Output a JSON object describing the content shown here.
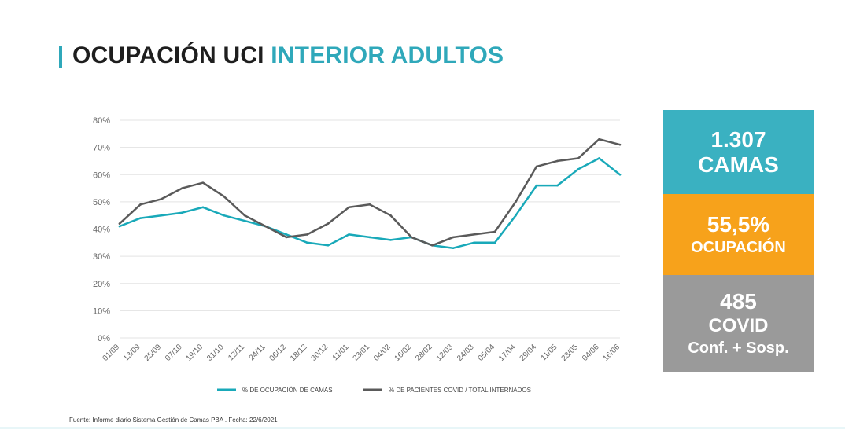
{
  "title": {
    "part1": "OCUPACIÓN UCI",
    "part2": "INTERIOR ADULTOS"
  },
  "colors": {
    "accent": "#2fa8ba",
    "series_beds": "#19a9b9",
    "series_covid": "#5a5a5a",
    "orange": "#f7a21b",
    "gray": "#9a9a9a"
  },
  "kpis": [
    {
      "lines": [
        "1.307",
        "CAMAS"
      ],
      "color": "#3ab1c1"
    },
    {
      "lines": [
        "55,5%",
        "OCUPACIÓN"
      ],
      "color": "#f7a21b"
    },
    {
      "lines": [
        "485",
        "COVID",
        "Conf. + Sosp."
      ],
      "color": "#9a9a9a"
    }
  ],
  "source": "Fuente: Informe diario Sistema Gestión de Camas PBA . Fecha: 22/6/2021",
  "chart_data": {
    "type": "line",
    "title": "",
    "xlabel": "",
    "ylabel": "",
    "ylim": [
      0,
      80
    ],
    "yticks": [
      "0%",
      "10%",
      "20%",
      "30%",
      "40%",
      "50%",
      "60%",
      "70%",
      "80%"
    ],
    "grid": true,
    "legend_position": "bottom",
    "x": [
      "01/09",
      "13/09",
      "25/09",
      "07/10",
      "19/10",
      "31/10",
      "12/11",
      "24/11",
      "06/12",
      "18/12",
      "30/12",
      "11/01",
      "23/01",
      "04/02",
      "16/02",
      "28/02",
      "12/03",
      "24/03",
      "05/04",
      "17/04",
      "29/04",
      "11/05",
      "23/05",
      "04/06",
      "16/06"
    ],
    "series": [
      {
        "name": "% DE OCUPACIÓN DE CAMAS",
        "color": "#19a9b9",
        "values": [
          41,
          44,
          45,
          46,
          48,
          45,
          43,
          41,
          38,
          35,
          34,
          38,
          37,
          36,
          37,
          34,
          33,
          35,
          35,
          45,
          56,
          56,
          62,
          66,
          60
        ]
      },
      {
        "name": "% DE PACIENTES COVID / TOTAL INTERNADOS",
        "color": "#5a5a5a",
        "values": [
          42,
          49,
          51,
          55,
          57,
          52,
          45,
          41,
          37,
          38,
          42,
          48,
          49,
          45,
          37,
          34,
          37,
          38,
          39,
          50,
          63,
          65,
          66,
          73,
          71
        ]
      }
    ]
  }
}
